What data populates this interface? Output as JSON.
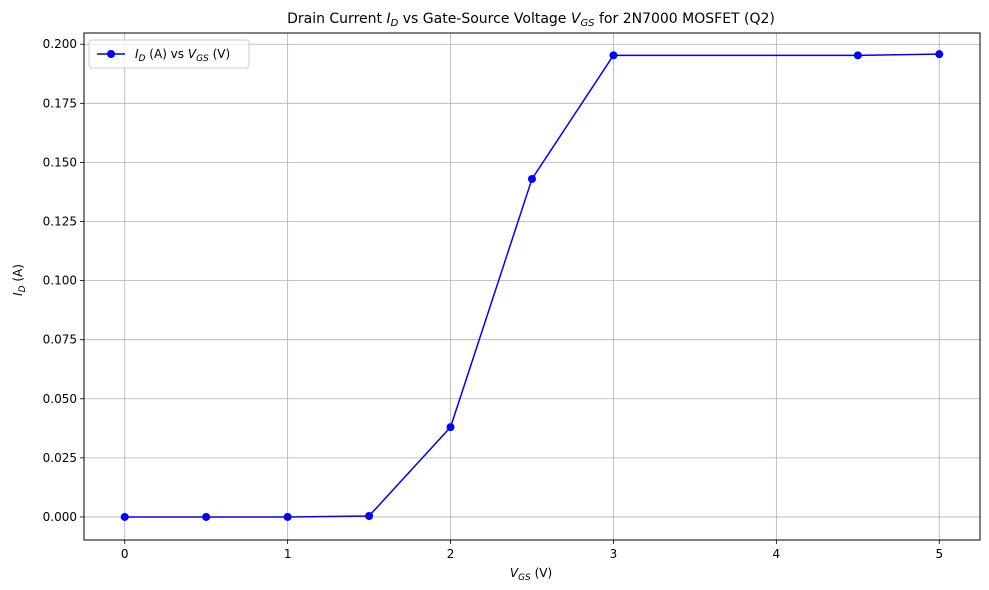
{
  "chart_data": {
    "type": "line",
    "title": {
      "prefix": "Drain Current ",
      "var1": "I",
      "var1_sub": "D",
      "middle": " vs Gate-Source Voltage ",
      "var2": "V",
      "var2_sub": "GS",
      "suffix": " for 2N7000 MOSFET (Q2)"
    },
    "xlabel": {
      "var": "V",
      "sub": "GS",
      "unit": " (V)"
    },
    "ylabel": {
      "var": "I",
      "sub": "D",
      "unit": " (A)"
    },
    "xlim": [
      -0.25,
      5.25
    ],
    "ylim": [
      -0.00975,
      0.20475
    ],
    "xticks": [
      0,
      1,
      2,
      3,
      4,
      5
    ],
    "xtick_labels": [
      "0",
      "1",
      "2",
      "3",
      "4",
      "5"
    ],
    "yticks": [
      0,
      0.025,
      0.05,
      0.075,
      0.1,
      0.125,
      0.15,
      0.175,
      0.2
    ],
    "ytick_labels": [
      "0.000",
      "0.025",
      "0.050",
      "0.075",
      "0.100",
      "0.125",
      "0.150",
      "0.175",
      "0.200"
    ],
    "grid": true,
    "legend_position": "upper-left",
    "series": [
      {
        "legend": {
          "var1": "I",
          "sub1": "D",
          "mid": " (A) vs ",
          "var2": "V",
          "sub2": "GS",
          "end": " (V)"
        },
        "color": "#0000ff",
        "marker": "circle",
        "x": [
          0,
          0.5,
          1,
          1.5,
          2,
          2.5,
          3,
          4.5,
          5
        ],
        "y": [
          0.0,
          0.0,
          0.0,
          0.0004,
          0.038,
          0.143,
          0.1953,
          0.1953,
          0.1958
        ]
      }
    ]
  }
}
